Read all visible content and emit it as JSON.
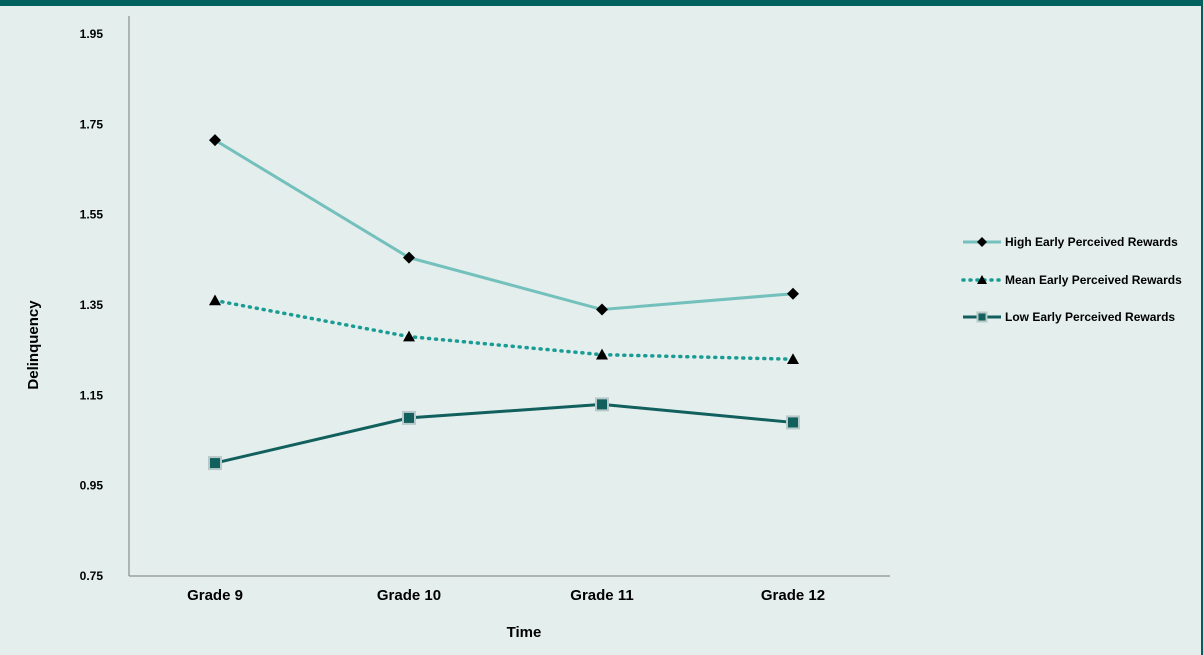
{
  "chart_data": {
    "type": "line",
    "title": "",
    "xlabel": "Time",
    "ylabel": "Delinquency",
    "categories": [
      "Grade 9",
      "Grade 10",
      "Grade 11",
      "Grade 12"
    ],
    "ylim": [
      0.75,
      1.95
    ],
    "yticks": [
      "0.75",
      "0.95",
      "1.15",
      "1.35",
      "1.55",
      "1.75",
      "1.95"
    ],
    "grid": false,
    "legend": "right",
    "series": [
      {
        "name": "High Early Perceived Rewards",
        "values": [
          1.715,
          1.455,
          1.34,
          1.375
        ],
        "color": "#74c0bc",
        "line_style": "solid",
        "marker": "diamond",
        "marker_color": "#000000"
      },
      {
        "name": "Mean Early Perceived Rewards",
        "values": [
          1.36,
          1.28,
          1.24,
          1.23
        ],
        "color": "#1a9c94",
        "line_style": "dotted",
        "marker": "triangle",
        "marker_color": "#000000"
      },
      {
        "name": "Low Early Perceived Rewards",
        "values": [
          1.0,
          1.1,
          1.13,
          1.09
        ],
        "color": "#11605d",
        "line_style": "solid",
        "marker": "square",
        "marker_color": "#11605d"
      }
    ]
  }
}
